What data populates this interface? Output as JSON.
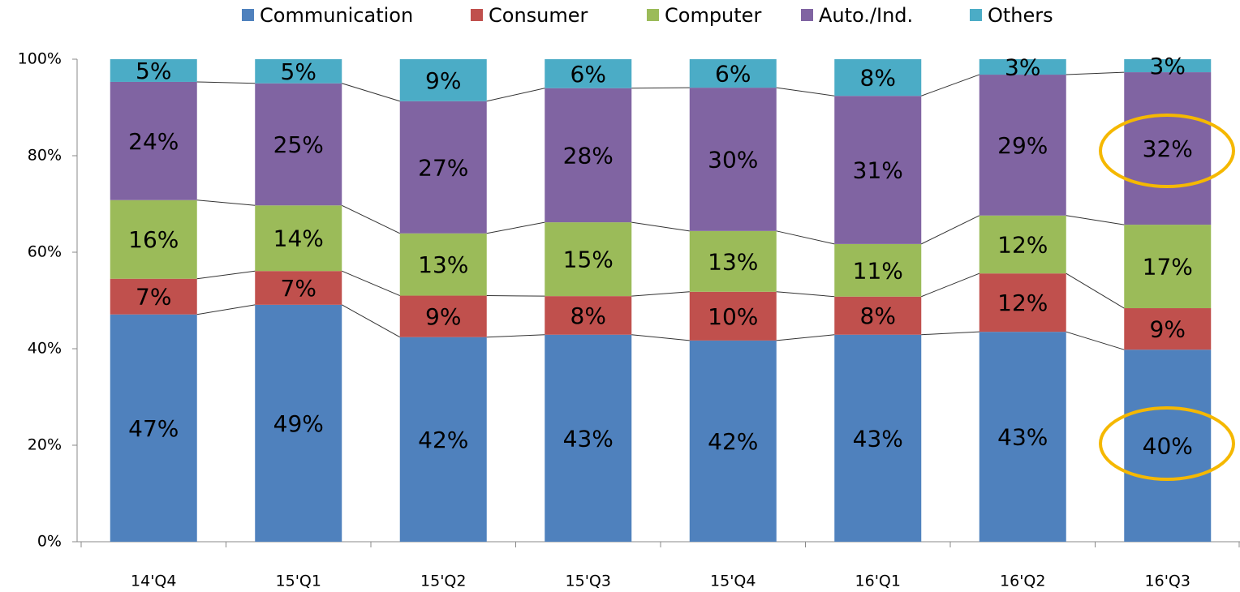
{
  "chart_data": {
    "type": "stacked_bar",
    "categories": [
      "14'Q4",
      "15'Q1",
      "15'Q2",
      "15'Q3",
      "15'Q4",
      "16'Q1",
      "16'Q2",
      "16'Q3"
    ],
    "series": [
      {
        "name": "Communication",
        "color": "#4f81bd",
        "values": [
          47.1,
          49.1,
          42.4,
          42.9,
          41.7,
          42.9,
          43.5,
          39.8
        ],
        "value_labels": [
          "47%",
          "49%",
          "42%",
          "43%",
          "42%",
          "43%",
          "43%",
          "40%"
        ]
      },
      {
        "name": "Consumer",
        "color": "#c0504d",
        "values": [
          7.4,
          7.0,
          8.6,
          8.0,
          10.1,
          7.9,
          12.1,
          8.6
        ],
        "value_labels": [
          "7%",
          "7%",
          "9%",
          "8%",
          "10%",
          "8%",
          "12%",
          "9%"
        ]
      },
      {
        "name": "Computer",
        "color": "#9bbb59",
        "values": [
          16.3,
          13.6,
          12.9,
          15.3,
          12.6,
          10.9,
          12.0,
          17.3
        ],
        "value_labels": [
          "16%",
          "14%",
          "13%",
          "15%",
          "13%",
          "11%",
          "12%",
          "17%"
        ]
      },
      {
        "name": "Auto./Ind.",
        "color": "#8064a2",
        "values": [
          24.5,
          25.3,
          27.4,
          27.8,
          29.7,
          30.7,
          29.2,
          31.6
        ],
        "value_labels": [
          "24%",
          "25%",
          "27%",
          "28%",
          "30%",
          "31%",
          "29%",
          "32%"
        ]
      },
      {
        "name": "Others",
        "color": "#4bacc6",
        "values": [
          4.7,
          5.0,
          8.7,
          6.0,
          5.9,
          7.6,
          3.2,
          2.7
        ],
        "value_labels": [
          "5%",
          "5%",
          "9%",
          "6%",
          "6%",
          "8%",
          "3%",
          "3%"
        ]
      }
    ],
    "ylim": [
      0,
      100
    ],
    "yticks": [
      {
        "value": 0,
        "label": "0%"
      },
      {
        "value": 20,
        "label": "20%"
      },
      {
        "value": 40,
        "label": "40%"
      },
      {
        "value": 60,
        "label": "60%"
      },
      {
        "value": 80,
        "label": "80%"
      },
      {
        "value": 100,
        "label": "100%"
      }
    ],
    "legend": "top",
    "connector_lines": true
  }
}
